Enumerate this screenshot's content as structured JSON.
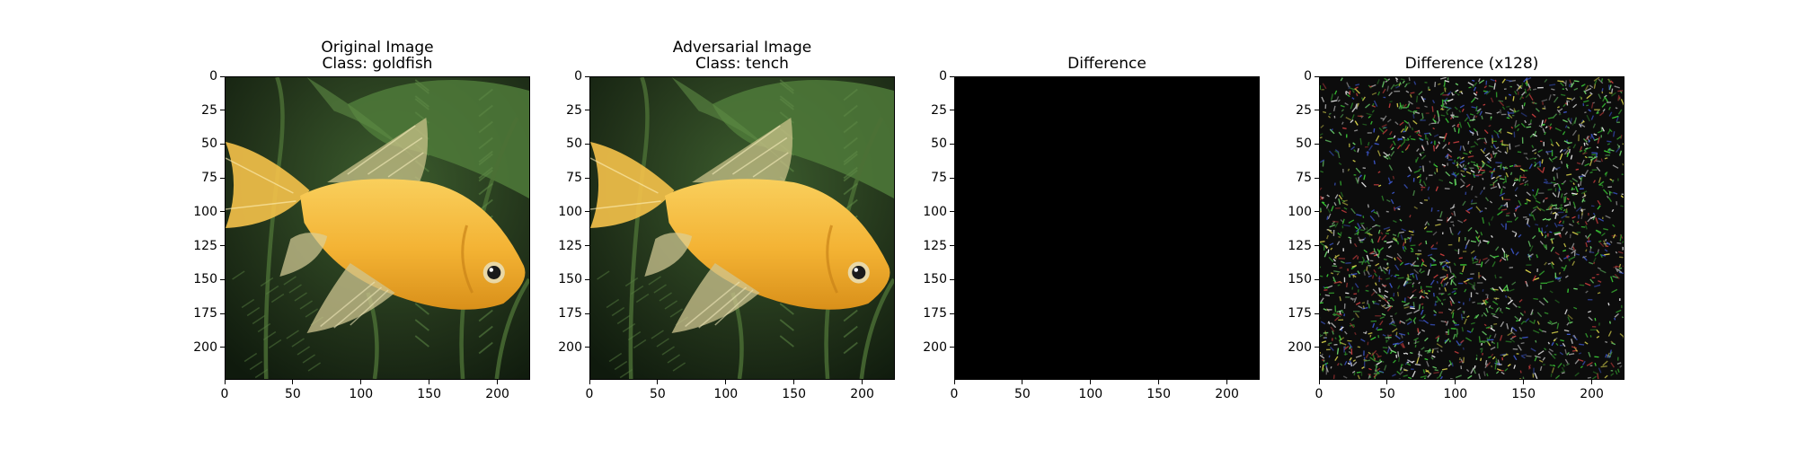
{
  "chart_data": [
    {
      "type": "image",
      "title_lines": [
        "Original Image",
        "Class: goldfish"
      ],
      "content": "goldfish-photo",
      "xticks": [
        0,
        50,
        100,
        150,
        200
      ],
      "yticks": [
        0,
        25,
        50,
        75,
        100,
        125,
        150,
        175,
        200
      ],
      "xlim": [
        0,
        224
      ],
      "ylim": [
        224,
        0
      ]
    },
    {
      "type": "image",
      "title_lines": [
        "Adversarial Image",
        "Class: tench"
      ],
      "content": "goldfish-photo",
      "xticks": [
        0,
        50,
        100,
        150,
        200
      ],
      "yticks": [
        0,
        25,
        50,
        75,
        100,
        125,
        150,
        175,
        200
      ],
      "xlim": [
        0,
        224
      ],
      "ylim": [
        224,
        0
      ]
    },
    {
      "type": "image",
      "title_lines": [
        "Difference"
      ],
      "content": "black",
      "xticks": [
        0,
        50,
        100,
        150,
        200
      ],
      "yticks": [
        0,
        25,
        50,
        75,
        100,
        125,
        150,
        175,
        200
      ],
      "xlim": [
        0,
        224
      ],
      "ylim": [
        224,
        0
      ]
    },
    {
      "type": "image",
      "title_lines": [
        "Difference (x128)"
      ],
      "content": "noise",
      "xticks": [
        0,
        50,
        100,
        150,
        200
      ],
      "yticks": [
        0,
        25,
        50,
        75,
        100,
        125,
        150,
        175,
        200
      ],
      "xlim": [
        0,
        224
      ],
      "ylim": [
        224,
        0
      ]
    }
  ]
}
